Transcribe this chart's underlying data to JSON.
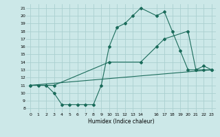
{
  "xlabel": "Humidex (Indice chaleur)",
  "bg_color": "#cce8e8",
  "grid_color": "#aad0d0",
  "line_color": "#1a6b5a",
  "line1_x": [
    0,
    1,
    2,
    3,
    4,
    5,
    6,
    7,
    8,
    9,
    10,
    11,
    12,
    13,
    14,
    16,
    17,
    18,
    19,
    20,
    21,
    22,
    23
  ],
  "line1_y": [
    11,
    11,
    11,
    10,
    8.5,
    8.5,
    8.5,
    8.5,
    8.5,
    11,
    16,
    18.5,
    19,
    20,
    21,
    20,
    20.5,
    18,
    15.5,
    13,
    13,
    13.5,
    13
  ],
  "line2_x": [
    0,
    3,
    10,
    14,
    16,
    17,
    20,
    21,
    22,
    23
  ],
  "line2_y": [
    11,
    11,
    14,
    14,
    16,
    17,
    18,
    13,
    13,
    13
  ],
  "line3_x": [
    0,
    23
  ],
  "line3_y": [
    11,
    13
  ],
  "xlim": [
    -0.5,
    23.5
  ],
  "ylim": [
    7.5,
    21.5
  ],
  "xticks": [
    0,
    1,
    2,
    3,
    4,
    5,
    6,
    7,
    8,
    9,
    10,
    11,
    12,
    13,
    14,
    16,
    17,
    18,
    19,
    20,
    21,
    22,
    23
  ],
  "yticks": [
    8,
    9,
    10,
    11,
    12,
    13,
    14,
    15,
    16,
    17,
    18,
    19,
    20,
    21
  ]
}
